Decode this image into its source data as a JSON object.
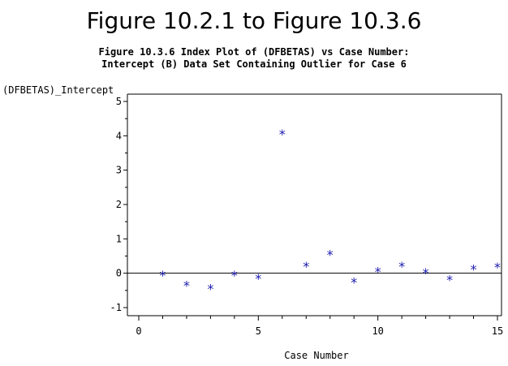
{
  "chart_data": {
    "type": "scatter",
    "title": "Figure 10.2.1 to Figure 10.3.6",
    "subtitle_lines": [
      "Figure 10.3.6 Index Plot of (DFBETAS) vs Case Number:",
      "Intercept (B) Data Set Containing Outlier for Case 6"
    ],
    "xlabel": "Case Number",
    "ylabel": "(DFBETAS)_Intercept",
    "xlim": [
      0,
      15
    ],
    "ylim": [
      -1,
      5
    ],
    "xticks": [
      0,
      5,
      10,
      15
    ],
    "yticks": [
      -1,
      0,
      1,
      2,
      3,
      4,
      5
    ],
    "reference_line_y": 0,
    "marker": "*",
    "colors": {
      "points": "#1a1ab0",
      "axes": "#000000",
      "text": "#000000"
    },
    "series": [
      {
        "x": [
          1,
          2,
          3,
          4,
          5,
          6,
          7,
          8,
          9,
          10,
          11,
          12,
          13,
          14,
          15
        ],
        "y": [
          -0.05,
          -0.35,
          -0.45,
          -0.05,
          -0.15,
          4.05,
          0.2,
          0.55,
          -0.25,
          0.05,
          0.2,
          0.02,
          -0.18,
          0.12,
          0.18
        ]
      }
    ]
  }
}
